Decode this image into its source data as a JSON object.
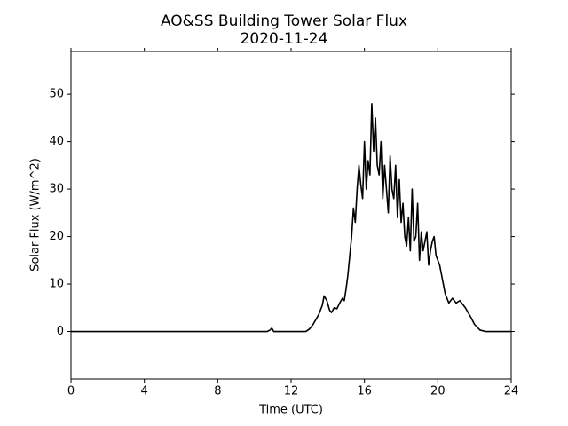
{
  "chart_data": {
    "type": "line",
    "title": "AO&SS Building Tower Solar Flux",
    "subtitle": "2020-11-24",
    "x_label": "Time (UTC)",
    "y_label": "Solar Flux (W/m^2)",
    "color": "#000000",
    "x": [
      0,
      10.7,
      10.85,
      10.95,
      11.05,
      11.2,
      12.8,
      13.0,
      13.2,
      13.5,
      13.7,
      13.8,
      13.95,
      14.1,
      14.2,
      14.35,
      14.5,
      14.65,
      14.8,
      14.9,
      15.0,
      15.1,
      15.2,
      15.3,
      15.4,
      15.5,
      15.6,
      15.7,
      15.8,
      15.9,
      16.0,
      16.1,
      16.2,
      16.3,
      16.4,
      16.5,
      16.6,
      16.7,
      16.8,
      16.9,
      17.0,
      17.1,
      17.2,
      17.3,
      17.4,
      17.5,
      17.6,
      17.7,
      17.8,
      17.9,
      18.0,
      18.1,
      18.2,
      18.3,
      18.4,
      18.5,
      18.6,
      18.7,
      18.8,
      18.9,
      19.0,
      19.1,
      19.2,
      19.3,
      19.4,
      19.5,
      19.6,
      19.7,
      19.8,
      19.9,
      20.0,
      20.1,
      20.2,
      20.3,
      20.4,
      20.5,
      20.6,
      20.8,
      21.0,
      21.2,
      21.5,
      21.8,
      22.0,
      22.3,
      22.6,
      24
    ],
    "values": [
      0,
      0,
      0.3,
      0.7,
      0,
      0,
      0,
      0.5,
      1.5,
      3.5,
      5.5,
      7.5,
      6.5,
      4.5,
      4.0,
      5.0,
      4.8,
      6.0,
      7.0,
      6.5,
      9.0,
      12.0,
      16.0,
      20.0,
      26.0,
      23.0,
      30.0,
      35.0,
      31.0,
      28.0,
      40.0,
      30.0,
      36.0,
      33.0,
      48.0,
      38.0,
      45.0,
      35.0,
      33.0,
      40.0,
      28.0,
      35.0,
      30.0,
      25.0,
      37.0,
      30.0,
      28.0,
      35.0,
      24.0,
      32.0,
      23.0,
      27.0,
      20.0,
      18.0,
      24.0,
      17.0,
      30.0,
      19.0,
      20.0,
      27.0,
      15.0,
      21.0,
      17.0,
      19.0,
      21.0,
      14.0,
      17.0,
      19.0,
      20.0,
      16.0,
      15.0,
      14.0,
      12.0,
      10.0,
      8.0,
      7.0,
      6.0,
      7.0,
      6.0,
      6.5,
      5.0,
      3.0,
      1.5,
      0.3,
      0,
      0
    ],
    "xlim": [
      0,
      24
    ],
    "xticks": [
      0,
      4,
      8,
      12,
      16,
      20,
      24
    ],
    "ylim": [
      -10,
      59
    ],
    "yticks": [
      0,
      10,
      20,
      30,
      40,
      50
    ]
  }
}
